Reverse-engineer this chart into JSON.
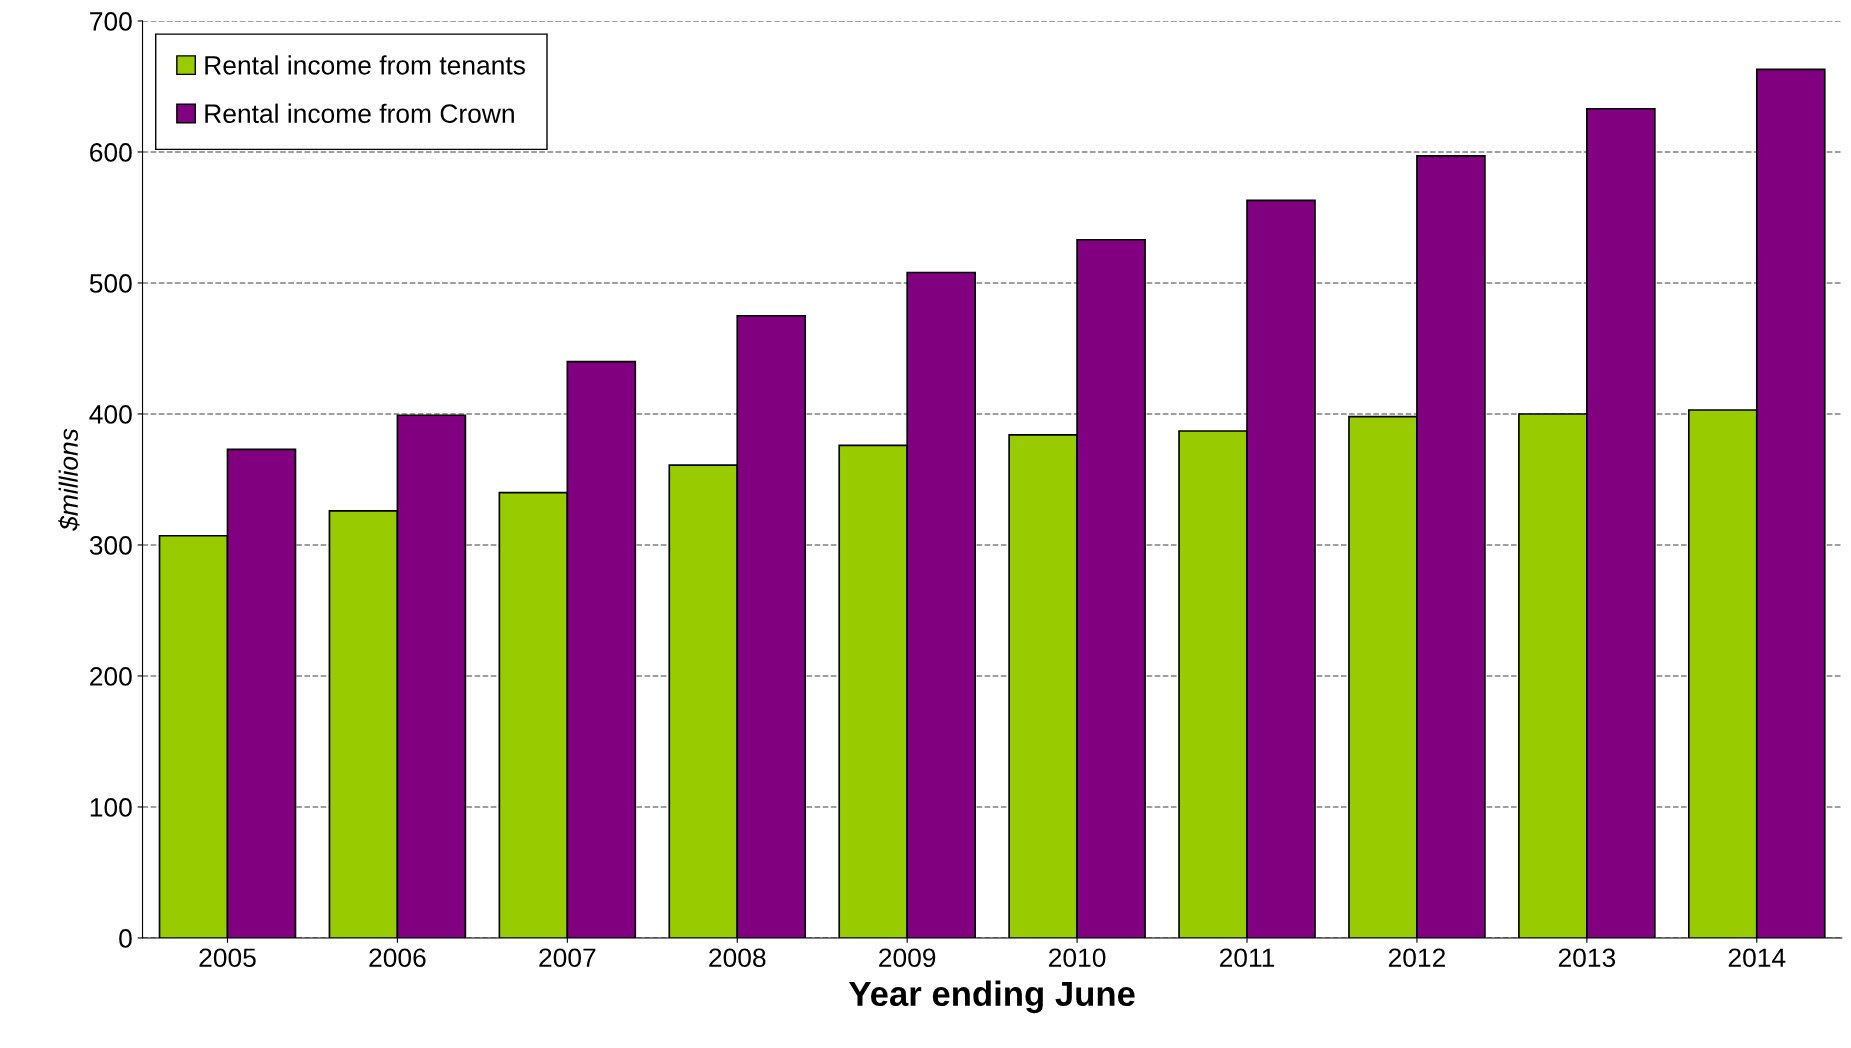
{
  "chart_data": {
    "type": "bar",
    "xlabel": "Year ending June",
    "ylabel": "$millions",
    "categories": [
      "2005",
      "2006",
      "2007",
      "2008",
      "2009",
      "2010",
      "2011",
      "2012",
      "2013",
      "2014"
    ],
    "series": [
      {
        "name": "Rental income from tenants",
        "color": "#99cc00",
        "values": [
          307,
          326,
          340,
          361,
          376,
          384,
          387,
          398,
          400,
          403
        ]
      },
      {
        "name": "Rental income from Crown",
        "color": "#800080",
        "values": [
          373,
          399,
          440,
          475,
          508,
          533,
          563,
          597,
          633,
          663
        ]
      }
    ],
    "ylim": [
      0,
      700
    ],
    "yticks": [
      0,
      100,
      200,
      300,
      400,
      500,
      600,
      700
    ],
    "grid": "y",
    "legend": "top left"
  }
}
